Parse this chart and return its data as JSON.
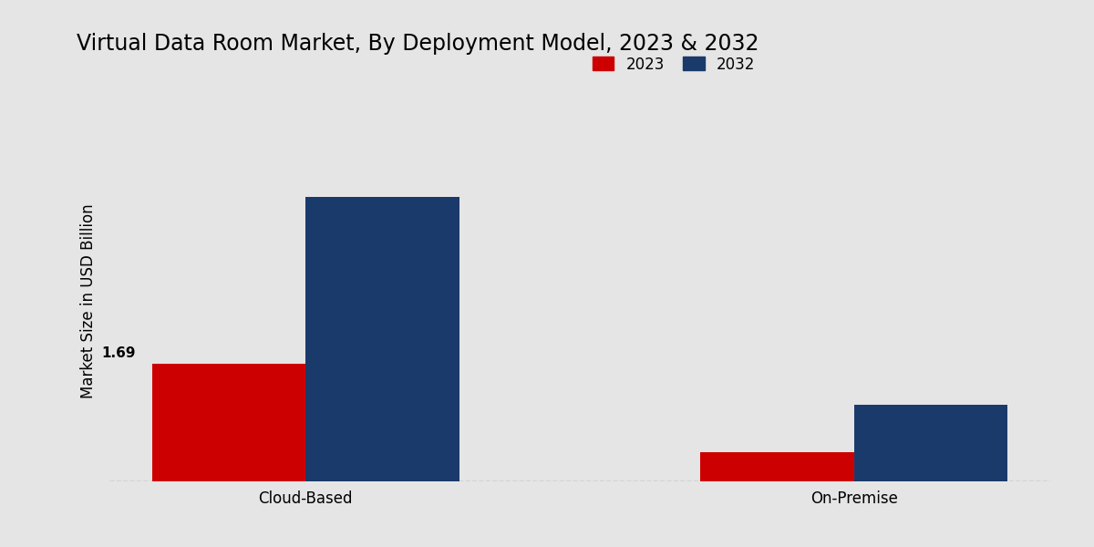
{
  "title": "Virtual Data Room Market, By Deployment Model, 2023 & 2032",
  "categories": [
    "Cloud-Based",
    "On-Premise"
  ],
  "values_2023": [
    1.69,
    0.42
  ],
  "values_2032": [
    4.1,
    1.1
  ],
  "color_2023": "#cc0000",
  "color_2032": "#1a3a6b",
  "ylabel": "Market Size in USD Billion",
  "legend_labels": [
    "2023",
    "2032"
  ],
  "bar_width": 0.28,
  "ylim": [
    0,
    5.2
  ],
  "background_color": "#e5e5e5",
  "label_2023_cloud": "1.69",
  "bar_annotation_fontsize": 11,
  "title_fontsize": 17,
  "axis_label_fontsize": 12,
  "tick_fontsize": 12,
  "legend_fontsize": 12
}
